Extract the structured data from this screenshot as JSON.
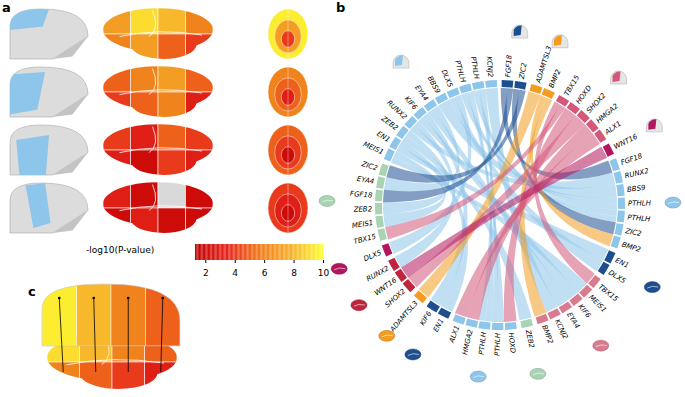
{
  "chart_data": [
    {
      "type": "brain_map",
      "panel": "a",
      "rows": [
        {
          "lateral": [
            7,
            9,
            8,
            6,
            6,
            7,
            5,
            4
          ],
          "top": [
            9.5,
            7,
            4
          ]
        },
        {
          "lateral": [
            5,
            6,
            7,
            5,
            4,
            5,
            6,
            3
          ],
          "top": [
            6,
            5,
            3
          ]
        },
        {
          "lateral": [
            4,
            3,
            5,
            4,
            3,
            2,
            4,
            3
          ],
          "top": [
            5,
            4,
            2
          ]
        },
        {
          "lateral": [
            3,
            2,
            null,
            2,
            2,
            3,
            2,
            2
          ],
          "top": [
            4,
            3,
            2
          ]
        }
      ],
      "colorbar": {
        "title": "-log10(P-value)",
        "range": [
          1.3,
          10
        ],
        "ticks": [
          2,
          4,
          6,
          8,
          10
        ],
        "colors": [
          "#c00000",
          "#e8261c",
          "#f07a1a",
          "#f7b22a",
          "#ffff33"
        ]
      }
    },
    {
      "type": "chord",
      "panel": "b",
      "skull_groups": [
        {
          "color": "#8ec5ea",
          "genes": [
            "MEIS1",
            "EN1",
            "ZEB2",
            "RUNX2",
            "KIF6",
            "EYA4",
            "BBS9",
            "DLX5",
            "PTHLH",
            "PTHLH",
            "KCNJ2"
          ]
        },
        {
          "color": "#1d4f8f",
          "genes": [
            "FGF18",
            "ZIC2"
          ]
        },
        {
          "color": "#f39c1f",
          "genes": [
            "ADAMTSL3",
            "BMP2"
          ]
        },
        {
          "color": "#d4587a",
          "genes": [
            "TBX15",
            "HOXD",
            "SHOX2",
            "HMGA2",
            "ALX1"
          ]
        },
        {
          "color": "#b3155e",
          "genes": [
            "WNT16"
          ]
        }
      ],
      "brain_groups": [
        {
          "color": "#8ec5ea",
          "genes": [
            "FGF18",
            "RUNX2",
            "BBS9",
            "PTHLH",
            "PTHLH",
            "ZIC2",
            "BMP2"
          ]
        },
        {
          "color": "#1d4f8f",
          "genes": [
            "EN1",
            "DLX5"
          ]
        },
        {
          "color": "#d97a8e",
          "genes": [
            "TBX15",
            "MEIS1",
            "KIF6",
            "EYA4",
            "KCNJ2",
            "BMP2"
          ]
        },
        {
          "color": "#a9d4b3",
          "genes": [
            "ZEB2"
          ]
        },
        {
          "color": "#8ec5ea",
          "genes": [
            "HOXD",
            "PTHLH",
            "PTHLH",
            "HMGA2",
            "ALX1"
          ]
        },
        {
          "color": "#1d4f8f",
          "genes": [
            "EN1",
            "KIF6"
          ]
        },
        {
          "color": "#f39c1f",
          "genes": [
            "ADAMTSL3"
          ]
        },
        {
          "color": "#c0243c",
          "genes": [
            "SHOX2",
            "WNT16",
            "RUNX2"
          ]
        },
        {
          "color": "#b3155e",
          "genes": [
            "DLX5"
          ]
        },
        {
          "color": "#a9d4b3",
          "genes": [
            "TBX15",
            "MEIS1",
            "ZEB2",
            "FGF18",
            "EYA4",
            "ZIC2"
          ]
        }
      ]
    },
    {
      "type": "brain_map",
      "panel": "c",
      "skull": [
        9.5,
        8,
        6,
        5
      ],
      "lateral": [
        9,
        8,
        6,
        5,
        6,
        5,
        4,
        3
      ]
    }
  ]
}
